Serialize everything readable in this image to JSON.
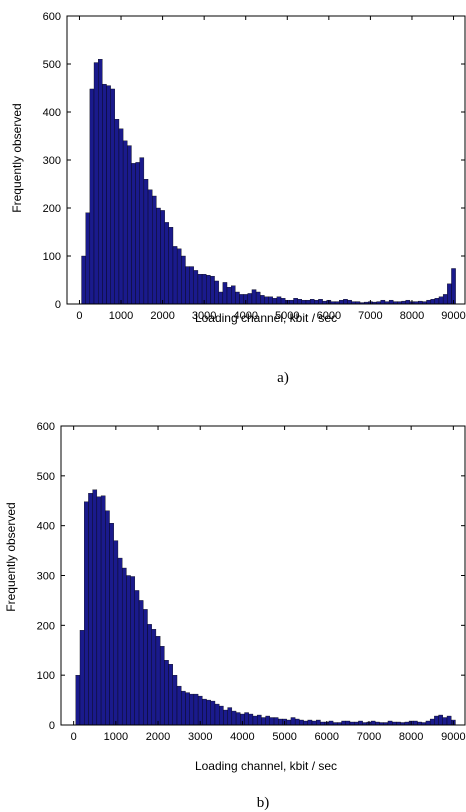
{
  "chart_data": [
    {
      "type": "bar",
      "caption": "a)",
      "xlabel": "Loading channel, kbit / sec",
      "ylabel": "Frequently observed",
      "xlim": [
        -300,
        9300
      ],
      "ylim": [
        0,
        600
      ],
      "xticks": [
        0,
        1000,
        2000,
        3000,
        4000,
        5000,
        6000,
        7000,
        8000,
        9000
      ],
      "yticks": [
        0,
        100,
        200,
        300,
        400,
        500,
        600
      ],
      "bin_width": 100,
      "bar_color": "#1a1a8c",
      "x": [
        100,
        200,
        300,
        400,
        500,
        600,
        700,
        800,
        900,
        1000,
        1100,
        1200,
        1300,
        1400,
        1500,
        1600,
        1700,
        1800,
        1900,
        2000,
        2100,
        2200,
        2300,
        2400,
        2500,
        2600,
        2700,
        2800,
        2900,
        3000,
        3100,
        3200,
        3300,
        3400,
        3500,
        3600,
        3700,
        3800,
        3900,
        4000,
        4100,
        4200,
        4300,
        4400,
        4500,
        4600,
        4700,
        4800,
        4900,
        5000,
        5100,
        5200,
        5300,
        5400,
        5500,
        5600,
        5700,
        5800,
        5900,
        6000,
        6100,
        6200,
        6300,
        6400,
        6500,
        6600,
        6700,
        6800,
        6900,
        7000,
        7100,
        7200,
        7300,
        7400,
        7500,
        7600,
        7700,
        7800,
        7900,
        8000,
        8100,
        8200,
        8300,
        8400,
        8500,
        8600,
        8700,
        8800,
        8900,
        9000
      ],
      "values": [
        100,
        190,
        448,
        503,
        510,
        458,
        455,
        448,
        385,
        365,
        340,
        330,
        293,
        295,
        305,
        260,
        238,
        225,
        200,
        195,
        170,
        160,
        120,
        115,
        100,
        78,
        78,
        70,
        62,
        62,
        60,
        58,
        48,
        25,
        45,
        35,
        38,
        25,
        20,
        20,
        22,
        30,
        25,
        18,
        15,
        15,
        12,
        15,
        12,
        8,
        8,
        12,
        10,
        8,
        8,
        10,
        8,
        10,
        6,
        8,
        5,
        5,
        8,
        10,
        8,
        5,
        5,
        3,
        4,
        5,
        4,
        5,
        8,
        5,
        8,
        5,
        5,
        6,
        8,
        5,
        5,
        6,
        5,
        8,
        10,
        12,
        15,
        20,
        42,
        74
      ]
    },
    {
      "type": "bar",
      "caption": "b)",
      "xlabel": "Loading channel, kbit / sec",
      "ylabel": "Frequently observed",
      "xlim": [
        -300,
        9300
      ],
      "ylim": [
        0,
        600
      ],
      "xticks": [
        0,
        1000,
        2000,
        3000,
        4000,
        5000,
        6000,
        7000,
        8000,
        9000
      ],
      "yticks": [
        0,
        100,
        200,
        300,
        400,
        500,
        600
      ],
      "bin_width": 100,
      "bar_color": "#1a1a8c",
      "x": [
        100,
        200,
        300,
        400,
        500,
        600,
        700,
        800,
        900,
        1000,
        1100,
        1200,
        1300,
        1400,
        1500,
        1600,
        1700,
        1800,
        1900,
        2000,
        2100,
        2200,
        2300,
        2400,
        2500,
        2600,
        2700,
        2800,
        2900,
        3000,
        3100,
        3200,
        3300,
        3400,
        3500,
        3600,
        3700,
        3800,
        3900,
        4000,
        4100,
        4200,
        4300,
        4400,
        4500,
        4600,
        4700,
        4800,
        4900,
        5000,
        5100,
        5200,
        5300,
        5400,
        5500,
        5600,
        5700,
        5800,
        5900,
        6000,
        6100,
        6200,
        6300,
        6400,
        6500,
        6600,
        6700,
        6800,
        6900,
        7000,
        7100,
        7200,
        7300,
        7400,
        7500,
        7600,
        7700,
        7800,
        7900,
        8000,
        8100,
        8200,
        8300,
        8400,
        8500,
        8600,
        8700,
        8800,
        8900,
        9000
      ],
      "values": [
        100,
        190,
        448,
        465,
        472,
        458,
        460,
        430,
        405,
        370,
        335,
        315,
        300,
        298,
        270,
        250,
        232,
        202,
        192,
        178,
        158,
        130,
        122,
        100,
        78,
        68,
        65,
        62,
        62,
        58,
        52,
        50,
        48,
        42,
        38,
        30,
        35,
        28,
        25,
        22,
        25,
        22,
        18,
        20,
        15,
        18,
        15,
        15,
        12,
        12,
        10,
        15,
        12,
        10,
        8,
        10,
        8,
        10,
        6,
        6,
        8,
        5,
        5,
        8,
        8,
        6,
        6,
        8,
        5,
        6,
        8,
        6,
        5,
        5,
        8,
        6,
        6,
        5,
        6,
        8,
        8,
        6,
        5,
        8,
        12,
        18,
        20,
        15,
        18,
        10
      ]
    }
  ]
}
